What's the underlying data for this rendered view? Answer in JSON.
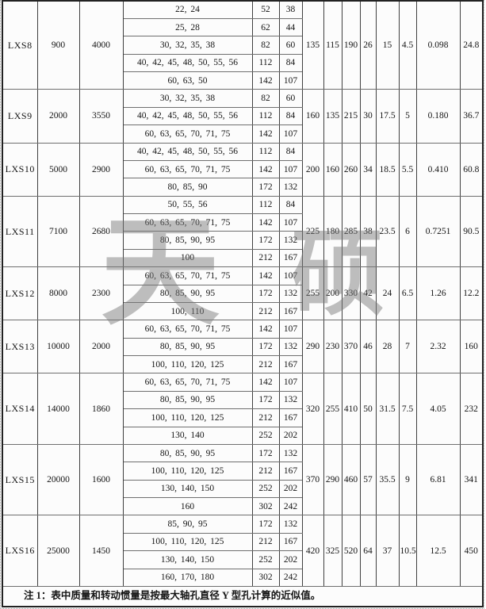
{
  "table": {
    "blocks": [
      {
        "model": "LXS8",
        "v1": "900",
        "v2": "4000",
        "rows": [
          [
            "22, 24",
            "52",
            "38"
          ],
          [
            "25, 28",
            "62",
            "44"
          ],
          [
            "30, 32, 35, 38",
            "82",
            "60"
          ],
          [
            "40, 42, 45, 48, 50, 55, 56",
            "112",
            "84"
          ],
          [
            "60, 63, 50",
            "142",
            "107"
          ]
        ],
        "span": [
          "135",
          "115",
          "190",
          "26",
          "15",
          "4.5",
          "0.098",
          "24.8"
        ]
      },
      {
        "model": "LXS9",
        "v1": "2000",
        "v2": "3550",
        "rows": [
          [
            "30, 32, 35, 38",
            "82",
            "60"
          ],
          [
            "40, 42, 45, 48, 50, 55, 56",
            "112",
            "84"
          ],
          [
            "60, 63, 65, 70, 71, 75",
            "142",
            "107"
          ]
        ],
        "span": [
          "160",
          "135",
          "215",
          "30",
          "17.5",
          "5",
          "0.180",
          "36.7"
        ]
      },
      {
        "model": "LXS10",
        "v1": "5000",
        "v2": "2900",
        "rows": [
          [
            "40, 42, 45, 48, 50, 55, 56",
            "112",
            "84"
          ],
          [
            "60, 63, 65, 70, 71, 75",
            "142",
            "107"
          ],
          [
            "80, 85, 90",
            "172",
            "132"
          ]
        ],
        "span": [
          "200",
          "160",
          "260",
          "34",
          "18.5",
          "5.5",
          "0.410",
          "60.8"
        ]
      },
      {
        "model": "LXS11",
        "v1": "7100",
        "v2": "2680",
        "rows": [
          [
            "50, 55, 56",
            "112",
            "84"
          ],
          [
            "60, 63, 65, 70, 71, 75",
            "142",
            "107"
          ],
          [
            "80, 85, 90, 95",
            "172",
            "132"
          ],
          [
            "100",
            "212",
            "167"
          ]
        ],
        "span": [
          "225",
          "180",
          "285",
          "38",
          "23.5",
          "6",
          "0.7251",
          "90.5"
        ]
      },
      {
        "model": "LXS12",
        "v1": "8000",
        "v2": "2300",
        "rows": [
          [
            "60, 63, 65, 70, 71, 75",
            "142",
            "107"
          ],
          [
            "80, 85, 90, 95",
            "172",
            "132"
          ],
          [
            "100, 110",
            "212",
            "167"
          ]
        ],
        "span": [
          "255",
          "200",
          "330",
          "42",
          "24",
          "6.5",
          "1.26",
          "12.2"
        ]
      },
      {
        "model": "LXS13",
        "v1": "10000",
        "v2": "2000",
        "rows": [
          [
            "60, 63, 65, 70, 71, 75",
            "142",
            "107"
          ],
          [
            "80, 85, 90, 95",
            "172",
            "132"
          ],
          [
            "100, 110, 120, 125",
            "212",
            "167"
          ]
        ],
        "span": [
          "290",
          "230",
          "370",
          "46",
          "28",
          "7",
          "2.32",
          "160"
        ]
      },
      {
        "model": "LXS14",
        "v1": "14000",
        "v2": "1860",
        "rows": [
          [
            "60, 63, 65, 70, 71, 75",
            "142",
            "107"
          ],
          [
            "80, 85, 90, 95",
            "172",
            "132"
          ],
          [
            "100, 110, 120, 125",
            "212",
            "167"
          ],
          [
            "130, 140",
            "252",
            "202"
          ]
        ],
        "span": [
          "320",
          "255",
          "410",
          "50",
          "31.5",
          "7.5",
          "4.05",
          "232"
        ]
      },
      {
        "model": "LXS15",
        "v1": "20000",
        "v2": "1600",
        "rows": [
          [
            "80, 85, 90, 95",
            "172",
            "132"
          ],
          [
            "100, 110, 120, 125",
            "212",
            "167"
          ],
          [
            "130, 140, 150",
            "252",
            "202"
          ],
          [
            "160",
            "302",
            "242"
          ]
        ],
        "span": [
          "370",
          "290",
          "460",
          "57",
          "35.5",
          "9",
          "6.81",
          "341"
        ]
      },
      {
        "model": "LXS16",
        "v1": "25000",
        "v2": "1450",
        "rows": [
          [
            "85, 90, 95",
            "172",
            "132"
          ],
          [
            "100, 110, 120, 125",
            "212",
            "167"
          ],
          [
            "130, 140, 150",
            "252",
            "202"
          ],
          [
            "160, 170, 180",
            "302",
            "242"
          ]
        ],
        "span": [
          "420",
          "325",
          "520",
          "64",
          "37",
          "10.5",
          "12.5",
          "450"
        ]
      }
    ]
  },
  "note": {
    "text": "注 1：表中质量和转动惯量是按最大轴孔直径 Y 型孔计算的近似值。"
  },
  "watermark": {
    "chars": [
      "天",
      "硕"
    ],
    "color": "#7a7a7a"
  },
  "colors": {
    "grid_line": "#3f3f3f",
    "block_line": "#1f1f1f",
    "text": "#141414",
    "background": "#fcfcfc"
  }
}
